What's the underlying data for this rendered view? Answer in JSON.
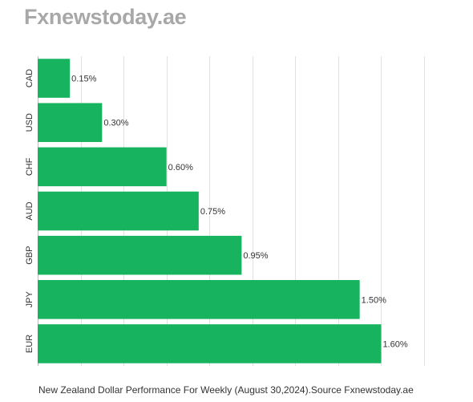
{
  "header": {
    "site_name": "Fxnewstoday.ae"
  },
  "caption": "New Zealand Dollar Performance For Weekly (August 30,2024).Source Fxnewstoday.ae",
  "colors": {
    "bar": "#17b35e",
    "grid": "#e2e2e2",
    "text": "#333333"
  },
  "chart_data": {
    "type": "bar",
    "orientation": "horizontal",
    "categories": [
      "CAD",
      "USD",
      "CHF",
      "AUD",
      "GBP",
      "JPY",
      "EUR"
    ],
    "values": [
      0.15,
      0.3,
      0.6,
      0.75,
      0.95,
      1.5,
      1.6
    ],
    "data_labels": [
      "0.15%",
      "0.30%",
      "0.60%",
      "0.75%",
      "0.95%",
      "1.50%",
      "1.60%"
    ],
    "xlim": [
      0,
      1.8
    ],
    "grid": true,
    "legend": "none"
  }
}
